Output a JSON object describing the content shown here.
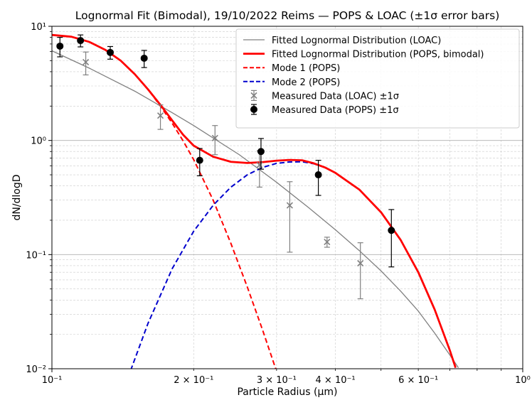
{
  "chart_data": {
    "type": "line",
    "title": "Lognormal Fit (Bimodal), 19/10/2022 Reims — POPS & LOAC (±1σ error bars)",
    "xlabel": "Particle Radius (µm)",
    "ylabel": "dN/dlogD",
    "xscale": "log",
    "yscale": "log",
    "xlim": [
      0.1,
      1.0
    ],
    "ylim": [
      0.01,
      10
    ],
    "grid": true,
    "legend_position": "top-right",
    "x_ticks": [
      {
        "value": 0.1,
        "label": "10⁻¹"
      },
      {
        "value": 0.2,
        "label": "2 × 10⁻¹"
      },
      {
        "value": 0.3,
        "label": "3 × 10⁻¹"
      },
      {
        "value": 0.4,
        "label": "4 × 10⁻¹"
      },
      {
        "value": 0.6,
        "label": "6 × 10⁻¹"
      },
      {
        "value": 1.0,
        "label": "10⁰"
      }
    ],
    "y_ticks": [
      {
        "value": 0.01,
        "label": "10⁻²"
      },
      {
        "value": 0.1,
        "label": "10⁻¹"
      },
      {
        "value": 1,
        "label": "10⁰"
      },
      {
        "value": 10,
        "label": "10¹"
      }
    ],
    "series": [
      {
        "name": "Fitted Lognormal Distribution (LOAC)",
        "kind": "line",
        "color": "#808080",
        "dash": "solid",
        "points": [
          [
            0.1,
            6.1
          ],
          [
            0.12,
            4.3
          ],
          [
            0.15,
            2.7
          ],
          [
            0.18,
            1.75
          ],
          [
            0.2,
            1.35
          ],
          [
            0.25,
            0.75
          ],
          [
            0.3,
            0.43
          ],
          [
            0.35,
            0.26
          ],
          [
            0.4,
            0.165
          ],
          [
            0.45,
            0.108
          ],
          [
            0.5,
            0.072
          ],
          [
            0.55,
            0.048
          ],
          [
            0.6,
            0.032
          ],
          [
            0.65,
            0.0205
          ],
          [
            0.7,
            0.0132
          ],
          [
            0.73,
            0.0102
          ]
        ]
      },
      {
        "name": "Fitted Lognormal Distribution (POPS, bimodal)",
        "kind": "line",
        "color": "#ff0000",
        "dash": "solid",
        "points": [
          [
            0.1,
            8.4
          ],
          [
            0.11,
            8.1
          ],
          [
            0.12,
            7.3
          ],
          [
            0.13,
            6.2
          ],
          [
            0.14,
            5.0
          ],
          [
            0.15,
            3.8
          ],
          [
            0.16,
            2.8
          ],
          [
            0.17,
            2.05
          ],
          [
            0.18,
            1.5
          ],
          [
            0.19,
            1.12
          ],
          [
            0.2,
            0.9
          ],
          [
            0.22,
            0.72
          ],
          [
            0.24,
            0.65
          ],
          [
            0.26,
            0.635
          ],
          [
            0.28,
            0.645
          ],
          [
            0.3,
            0.665
          ],
          [
            0.32,
            0.675
          ],
          [
            0.34,
            0.67
          ],
          [
            0.36,
            0.63
          ],
          [
            0.38,
            0.58
          ],
          [
            0.4,
            0.52
          ],
          [
            0.45,
            0.37
          ],
          [
            0.5,
            0.235
          ],
          [
            0.55,
            0.135
          ],
          [
            0.6,
            0.07
          ],
          [
            0.65,
            0.033
          ],
          [
            0.7,
            0.0145
          ],
          [
            0.72,
            0.0102
          ]
        ]
      },
      {
        "name": "Mode 1 (POPS)",
        "kind": "line",
        "color": "#ff0000",
        "dash": "dashed",
        "points": [
          [
            0.1,
            8.4
          ],
          [
            0.11,
            8.1
          ],
          [
            0.12,
            7.3
          ],
          [
            0.13,
            6.2
          ],
          [
            0.14,
            5.0
          ],
          [
            0.15,
            3.8
          ],
          [
            0.16,
            2.8
          ],
          [
            0.17,
            2.0
          ],
          [
            0.18,
            1.42
          ],
          [
            0.19,
            0.99
          ],
          [
            0.2,
            0.68
          ],
          [
            0.22,
            0.3
          ],
          [
            0.24,
            0.125
          ],
          [
            0.26,
            0.052
          ],
          [
            0.28,
            0.022
          ],
          [
            0.3,
            0.0095
          ]
        ]
      },
      {
        "name": "Mode 2 (POPS)",
        "kind": "line",
        "color": "#0000cd",
        "dash": "dashed",
        "points": [
          [
            0.147,
            0.0097
          ],
          [
            0.16,
            0.025
          ],
          [
            0.18,
            0.075
          ],
          [
            0.2,
            0.16
          ],
          [
            0.22,
            0.27
          ],
          [
            0.24,
            0.39
          ],
          [
            0.26,
            0.5
          ],
          [
            0.28,
            0.58
          ],
          [
            0.3,
            0.63
          ],
          [
            0.32,
            0.648
          ],
          [
            0.34,
            0.65
          ],
          [
            0.36,
            0.625
          ],
          [
            0.38,
            0.58
          ],
          [
            0.4,
            0.52
          ],
          [
            0.45,
            0.37
          ],
          [
            0.5,
            0.235
          ],
          [
            0.55,
            0.135
          ],
          [
            0.6,
            0.07
          ],
          [
            0.65,
            0.033
          ],
          [
            0.7,
            0.0145
          ],
          [
            0.72,
            0.0102
          ]
        ]
      },
      {
        "name": "Measured Data (LOAC) ±1σ",
        "kind": "errorbar",
        "marker": "x",
        "color": "#808080",
        "points": [
          {
            "x": 0.118,
            "y": 4.85,
            "lo": 3.75,
            "hi": 5.95
          },
          {
            "x": 0.17,
            "y": 1.65,
            "lo": 1.25,
            "hi": 2.05
          },
          {
            "x": 0.222,
            "y": 1.05,
            "lo": 0.75,
            "hi": 1.35
          },
          {
            "x": 0.276,
            "y": 0.61,
            "lo": 0.39,
            "hi": 0.81
          },
          {
            "x": 0.32,
            "y": 0.27,
            "lo": 0.105,
            "hi": 0.435
          },
          {
            "x": 0.384,
            "y": 0.129,
            "lo": 0.116,
            "hi": 0.142
          },
          {
            "x": 0.452,
            "y": 0.084,
            "lo": 0.041,
            "hi": 0.127
          }
        ]
      },
      {
        "name": "Measured Data (POPS) ±1σ",
        "kind": "errorbar",
        "marker": "o",
        "color": "#000000",
        "points": [
          {
            "x": 0.104,
            "y": 6.7,
            "lo": 5.4,
            "hi": 8.0
          },
          {
            "x": 0.115,
            "y": 7.5,
            "lo": 6.6,
            "hi": 8.4
          },
          {
            "x": 0.133,
            "y": 5.9,
            "lo": 5.15,
            "hi": 6.65
          },
          {
            "x": 0.157,
            "y": 5.25,
            "lo": 4.35,
            "hi": 6.15
          },
          {
            "x": 0.206,
            "y": 0.67,
            "lo": 0.49,
            "hi": 0.85
          },
          {
            "x": 0.278,
            "y": 0.8,
            "lo": 0.56,
            "hi": 1.04
          },
          {
            "x": 0.368,
            "y": 0.5,
            "lo": 0.33,
            "hi": 0.67
          },
          {
            "x": 0.526,
            "y": 0.163,
            "lo": 0.078,
            "hi": 0.248
          }
        ]
      }
    ]
  }
}
